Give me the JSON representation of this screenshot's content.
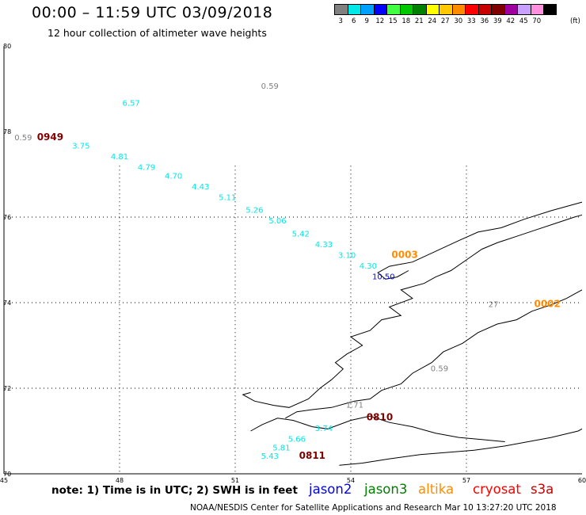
{
  "header": {
    "title": "00:00 – 11:59 UTC 03/09/2018",
    "subtitle": "12 hour collection of altimeter wave heights"
  },
  "colorbar": {
    "unit": "(ft)",
    "bins": [
      {
        "label": "3",
        "color": "#808080"
      },
      {
        "label": "6",
        "color": "#00e8e8"
      },
      {
        "label": "9",
        "color": "#00a0ff"
      },
      {
        "label": "12",
        "color": "#0000ff"
      },
      {
        "label": "15",
        "color": "#40ff40"
      },
      {
        "label": "18",
        "color": "#00c800"
      },
      {
        "label": "21",
        "color": "#008000"
      },
      {
        "label": "24",
        "color": "#ffff00"
      },
      {
        "label": "27",
        "color": "#ffc800"
      },
      {
        "label": "30",
        "color": "#ff8c00"
      },
      {
        "label": "33",
        "color": "#ff0000"
      },
      {
        "label": "36",
        "color": "#c80000"
      },
      {
        "label": "39",
        "color": "#800000"
      },
      {
        "label": "42",
        "color": "#a000a0"
      },
      {
        "label": "45",
        "color": "#c8a0ff"
      },
      {
        "label": "70",
        "color": "#ff90e0"
      },
      {
        "label": "",
        "color": "#000000"
      }
    ]
  },
  "footer": {
    "note": "note:  1) Time is in UTC;  2) SWH is in feet",
    "credit": "NOAA/NESDIS Center for Satellite Applications and Research     Mar 10 13:27:20 UTC 2018",
    "satellites": [
      {
        "name": "jason2",
        "color": "#0000ff"
      },
      {
        "name": "jason3",
        "color": "#008000"
      },
      {
        "name": "altika",
        "color": "#ff8c00"
      },
      {
        "name": "cryosat",
        "color": "#ff0000"
      },
      {
        "name": "s3a",
        "color": "#c80000"
      }
    ]
  },
  "chart_data": {
    "type": "scatter",
    "title": "12 hour collection of altimeter wave heights",
    "xlim": [
      45,
      60
    ],
    "ylim": [
      70,
      80
    ],
    "x_ticks": [
      "45",
      "48",
      "51",
      "54",
      "57",
      "60"
    ],
    "y_ticks": [
      "70",
      "72",
      "74",
      "76",
      "78",
      "80"
    ],
    "grid": true,
    "points": [
      {
        "lon": 51.9,
        "lat": 79.0,
        "value": "0.59",
        "color": "#808080"
      },
      {
        "lon": 48.3,
        "lat": 78.6,
        "value": "6.57",
        "color": "#00e8e8"
      },
      {
        "lon": 45.5,
        "lat": 77.8,
        "value": "0.59",
        "color": "#808080"
      },
      {
        "lon": 47.0,
        "lat": 77.6,
        "value": "3.75",
        "color": "#00e8e8"
      },
      {
        "lon": 48.0,
        "lat": 77.35,
        "value": "4.81",
        "color": "#00e8e8"
      },
      {
        "lon": 48.7,
        "lat": 77.1,
        "value": "4.79",
        "color": "#00e8e8"
      },
      {
        "lon": 49.4,
        "lat": 76.9,
        "value": "4.70",
        "color": "#00e8e8"
      },
      {
        "lon": 50.1,
        "lat": 76.65,
        "value": "4.43",
        "color": "#00e8e8"
      },
      {
        "lon": 50.8,
        "lat": 76.4,
        "value": "5.11",
        "color": "#00e8e8"
      },
      {
        "lon": 51.5,
        "lat": 76.1,
        "value": "5.26",
        "color": "#00e8e8"
      },
      {
        "lon": 52.1,
        "lat": 75.85,
        "value": "5.06",
        "color": "#00e8e8"
      },
      {
        "lon": 52.7,
        "lat": 75.55,
        "value": "5.42",
        "color": "#00e8e8"
      },
      {
        "lon": 53.3,
        "lat": 75.3,
        "value": "4.33",
        "color": "#00e8e8"
      },
      {
        "lon": 53.9,
        "lat": 75.05,
        "value": "3.10",
        "color": "#00e8e8"
      },
      {
        "lon": 54.45,
        "lat": 74.8,
        "value": "4.30",
        "color": "#00e8e8"
      },
      {
        "lon": 54.85,
        "lat": 74.55,
        "value": "10.50",
        "color": "#0000ff"
      },
      {
        "lon": 57.7,
        "lat": 73.9,
        "value": "27",
        "color": "#808080"
      },
      {
        "lon": 56.3,
        "lat": 72.4,
        "value": "0.59",
        "color": "#808080"
      },
      {
        "lon": 54.1,
        "lat": 71.55,
        "value": "1.71",
        "color": "#808080"
      },
      {
        "lon": 53.3,
        "lat": 71.0,
        "value": "3.74",
        "color": "#00e8e8"
      },
      {
        "lon": 52.6,
        "lat": 70.75,
        "value": "5.66",
        "color": "#00e8e8"
      },
      {
        "lon": 52.2,
        "lat": 70.55,
        "value": "5.81",
        "color": "#00e8e8"
      },
      {
        "lon": 51.9,
        "lat": 70.35,
        "value": "5.43",
        "color": "#00e8e8"
      }
    ],
    "passes": [
      {
        "lon": 46.2,
        "lat": 77.8,
        "label": "0949",
        "color": "#800000"
      },
      {
        "lon": 55.4,
        "lat": 75.05,
        "label": "0003",
        "color": "#ff8c00"
      },
      {
        "lon": 59.1,
        "lat": 73.9,
        "label": "0002",
        "color": "#ff8c00"
      },
      {
        "lon": 54.75,
        "lat": 71.25,
        "label": "0810",
        "color": "#800000"
      },
      {
        "lon": 53.0,
        "lat": 70.35,
        "label": "0811",
        "color": "#800000"
      }
    ]
  }
}
